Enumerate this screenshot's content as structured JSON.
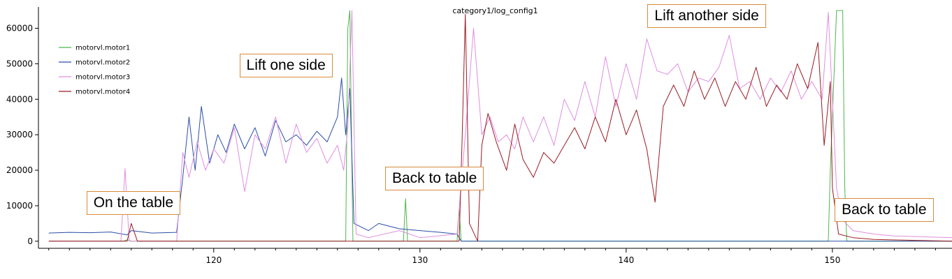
{
  "chart_data": {
    "type": "line",
    "title": "category1/log_config1",
    "xlabel": "",
    "ylabel": "",
    "xlim": [
      111.5,
      155.8
    ],
    "ylim": [
      -2000,
      66000
    ],
    "xticks": [
      120,
      130,
      140,
      150
    ],
    "yticks": [
      0,
      10000,
      20000,
      30000,
      40000,
      50000,
      60000
    ],
    "grid": false,
    "legend_position": "top-left",
    "series": [
      {
        "name": "motorvl.motor1",
        "color": "#4cb84c",
        "values": [
          [
            112,
            0
          ],
          [
            115.6,
            0
          ],
          [
            115.8,
            400
          ],
          [
            116,
            0
          ],
          [
            126.4,
            0
          ],
          [
            126.5,
            60000
          ],
          [
            126.6,
            65000
          ],
          [
            126.75,
            0
          ],
          [
            129.2,
            0
          ],
          [
            129.3,
            12000
          ],
          [
            129.4,
            0
          ],
          [
            131.8,
            0
          ],
          [
            131.9,
            9000
          ],
          [
            132,
            0
          ],
          [
            149.8,
            0
          ],
          [
            149.9,
            20000
          ],
          [
            150.2,
            65000
          ],
          [
            150.5,
            65000
          ],
          [
            150.6,
            15000
          ],
          [
            150.7,
            0
          ],
          [
            155.8,
            0
          ]
        ]
      },
      {
        "name": "motorvl.motor2",
        "color": "#2a4fa8",
        "values": [
          [
            112,
            2300
          ],
          [
            113,
            2500
          ],
          [
            114,
            2400
          ],
          [
            115,
            2600
          ],
          [
            115.8,
            1800
          ],
          [
            116,
            3000
          ],
          [
            117,
            2300
          ],
          [
            118.2,
            2500
          ],
          [
            118.5,
            18000
          ],
          [
            118.8,
            35000
          ],
          [
            119.1,
            20000
          ],
          [
            119.4,
            38000
          ],
          [
            119.8,
            22000
          ],
          [
            120.2,
            30000
          ],
          [
            120.6,
            25000
          ],
          [
            121,
            33000
          ],
          [
            121.5,
            26000
          ],
          [
            122,
            32000
          ],
          [
            122.5,
            24000
          ],
          [
            123,
            34000
          ],
          [
            123.5,
            28000
          ],
          [
            124,
            30000
          ],
          [
            124.5,
            27000
          ],
          [
            125,
            31000
          ],
          [
            125.5,
            28000
          ],
          [
            126,
            35000
          ],
          [
            126.2,
            46000
          ],
          [
            126.4,
            30000
          ],
          [
            126.6,
            43000
          ],
          [
            126.8,
            5000
          ],
          [
            127.5,
            3000
          ],
          [
            128,
            5000
          ],
          [
            129,
            3500
          ],
          [
            130,
            3000
          ],
          [
            131,
            2500
          ],
          [
            131.8,
            2000
          ],
          [
            132,
            0
          ],
          [
            155.8,
            0
          ]
        ]
      },
      {
        "name": "motorvl.motor3",
        "color": "#e08ee0",
        "values": [
          [
            112,
            0
          ],
          [
            115.5,
            0
          ],
          [
            115.7,
            20500
          ],
          [
            115.9,
            0
          ],
          [
            118.2,
            0
          ],
          [
            118.5,
            25000
          ],
          [
            118.8,
            18000
          ],
          [
            119.2,
            28000
          ],
          [
            119.6,
            20000
          ],
          [
            120,
            26000
          ],
          [
            120.5,
            22000
          ],
          [
            121,
            32000
          ],
          [
            121.5,
            14000
          ],
          [
            122,
            30000
          ],
          [
            122.5,
            26000
          ],
          [
            123,
            35000
          ],
          [
            123.5,
            22000
          ],
          [
            124,
            33000
          ],
          [
            124.5,
            25000
          ],
          [
            125,
            29000
          ],
          [
            125.5,
            22000
          ],
          [
            126,
            27000
          ],
          [
            126.3,
            20000
          ],
          [
            126.5,
            32000
          ],
          [
            126.7,
            65000
          ],
          [
            126.9,
            2000
          ],
          [
            127.5,
            1000
          ],
          [
            129,
            3000
          ],
          [
            130,
            1000
          ],
          [
            131.8,
            2000
          ],
          [
            132.2,
            30000
          ],
          [
            132.6,
            60000
          ],
          [
            133,
            30000
          ],
          [
            133.4,
            35000
          ],
          [
            133.8,
            28000
          ],
          [
            134.2,
            30000
          ],
          [
            134.6,
            26000
          ],
          [
            135,
            35000
          ],
          [
            135.5,
            28000
          ],
          [
            136,
            35000
          ],
          [
            136.5,
            27000
          ],
          [
            137,
            40000
          ],
          [
            137.5,
            34000
          ],
          [
            138,
            45000
          ],
          [
            138.5,
            35000
          ],
          [
            139,
            52000
          ],
          [
            139.5,
            38000
          ],
          [
            140,
            50000
          ],
          [
            140.5,
            40000
          ],
          [
            141,
            57000
          ],
          [
            141.5,
            48000
          ],
          [
            142,
            47000
          ],
          [
            142.5,
            50000
          ],
          [
            143,
            42000
          ],
          [
            143.5,
            46000
          ],
          [
            144,
            45000
          ],
          [
            144.5,
            49000
          ],
          [
            145,
            58000
          ],
          [
            145.5,
            43000
          ],
          [
            146,
            45000
          ],
          [
            146.5,
            40000
          ],
          [
            147,
            46000
          ],
          [
            147.5,
            42000
          ],
          [
            148,
            48000
          ],
          [
            148.5,
            40000
          ],
          [
            149,
            45000
          ],
          [
            149.5,
            40000
          ],
          [
            149.8,
            64500
          ],
          [
            150,
            40000
          ],
          [
            150.2,
            15000
          ],
          [
            150.5,
            6000
          ],
          [
            151,
            3000
          ],
          [
            152,
            2000
          ],
          [
            153,
            1500
          ],
          [
            155.8,
            1000
          ]
        ]
      },
      {
        "name": "motorvl.motor4",
        "color": "#9b1c24",
        "values": [
          [
            112,
            0
          ],
          [
            115.8,
            0
          ],
          [
            116,
            5000
          ],
          [
            116.3,
            0
          ],
          [
            131.9,
            0
          ],
          [
            132.05,
            30000
          ],
          [
            132.2,
            64000
          ],
          [
            132.4,
            5000
          ],
          [
            132.8,
            0
          ],
          [
            133,
            27000
          ],
          [
            133.3,
            36000
          ],
          [
            133.7,
            28000
          ],
          [
            134.2,
            20000
          ],
          [
            134.6,
            33000
          ],
          [
            135,
            23000
          ],
          [
            135.5,
            18000
          ],
          [
            136,
            25000
          ],
          [
            136.5,
            22000
          ],
          [
            137,
            27000
          ],
          [
            137.5,
            32000
          ],
          [
            138,
            26000
          ],
          [
            138.5,
            35000
          ],
          [
            139,
            28000
          ],
          [
            139.5,
            40000
          ],
          [
            140,
            30000
          ],
          [
            140.5,
            37000
          ],
          [
            141,
            26000
          ],
          [
            141.4,
            11000
          ],
          [
            141.8,
            38000
          ],
          [
            142.3,
            44000
          ],
          [
            142.8,
            38000
          ],
          [
            143.3,
            48000
          ],
          [
            143.8,
            40000
          ],
          [
            144.3,
            46000
          ],
          [
            144.8,
            38000
          ],
          [
            145.3,
            45000
          ],
          [
            145.8,
            40000
          ],
          [
            146.3,
            49000
          ],
          [
            146.8,
            38000
          ],
          [
            147.3,
            44000
          ],
          [
            147.8,
            40000
          ],
          [
            148.3,
            50000
          ],
          [
            148.8,
            43000
          ],
          [
            149.3,
            56000
          ],
          [
            149.6,
            27000
          ],
          [
            149.9,
            45000
          ],
          [
            150,
            15000
          ],
          [
            150.3,
            2000
          ],
          [
            151,
            1000
          ],
          [
            152,
            500
          ],
          [
            155.8,
            0
          ]
        ]
      }
    ],
    "annotations": [
      {
        "text": "On the table",
        "x": 116.1,
        "y": 10800
      },
      {
        "text": "Lift one side",
        "x": 123.5,
        "y": 49500
      },
      {
        "text": "Back to table",
        "x": 130.7,
        "y": 17700
      },
      {
        "text": "Lift another side",
        "x": 143.9,
        "y": 63500
      },
      {
        "text": "Back to table",
        "x": 152.5,
        "y": 8800
      }
    ]
  }
}
